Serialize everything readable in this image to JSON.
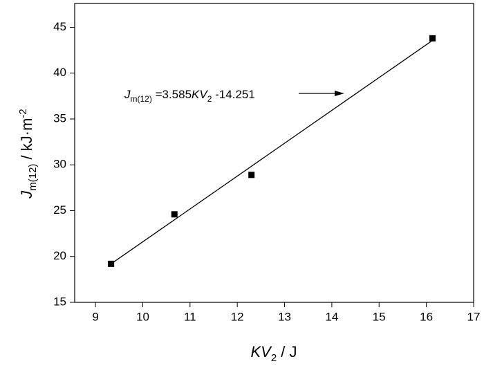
{
  "chart_data": {
    "type": "scatter",
    "x_label": [
      "KV",
      "2",
      " / J"
    ],
    "y_label": [
      "J",
      "m(12)",
      " / kJ·m",
      "-2"
    ],
    "annotation": [
      "J",
      "m(12)",
      " =3.585",
      "KV",
      "2",
      " -14.251"
    ],
    "xlim": [
      8.56,
      17
    ],
    "xticks": [
      9,
      10,
      11,
      12,
      13,
      14,
      15,
      16,
      17
    ],
    "ylim": [
      15,
      47.6
    ],
    "yticks": [
      15,
      20,
      25,
      30,
      35,
      40,
      45
    ],
    "series": [
      {
        "color": "#000000",
        "x": [
          9.33,
          10.67,
          12.3,
          16.13
        ],
        "values": [
          19.2,
          24.6,
          28.9,
          43.8
        ]
      },
      {
        "type": "line",
        "color": "#000000",
        "x": [
          9.33,
          16.13
        ],
        "values": [
          19.2,
          43.57
        ]
      }
    ]
  }
}
